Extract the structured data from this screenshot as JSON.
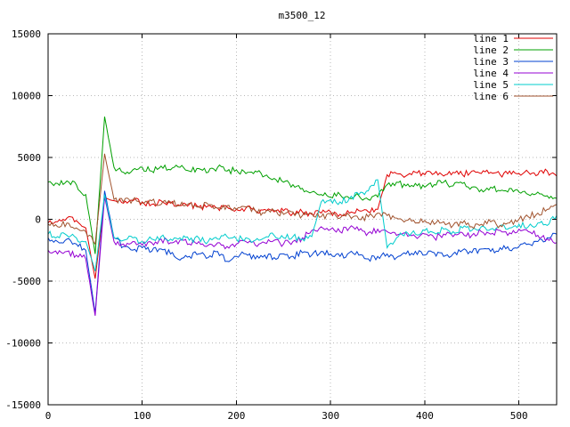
{
  "chart_data": {
    "type": "line",
    "title": "m3500_12",
    "xlabel": "",
    "ylabel": "",
    "xlim": [
      0,
      540
    ],
    "ylim": [
      -15000,
      15000
    ],
    "xticks": [
      0,
      100,
      200,
      300,
      400,
      500
    ],
    "yticks": [
      -15000,
      -10000,
      -5000,
      0,
      5000,
      10000,
      15000
    ],
    "grid": true,
    "grid_color": "#b9b9b9",
    "legend_position": "top-right",
    "x": [
      0,
      10,
      20,
      30,
      40,
      50,
      60,
      70,
      80,
      90,
      100,
      110,
      120,
      130,
      140,
      150,
      160,
      170,
      180,
      190,
      200,
      210,
      220,
      230,
      240,
      250,
      260,
      270,
      280,
      290,
      300,
      310,
      320,
      330,
      340,
      350,
      360,
      370,
      380,
      390,
      400,
      410,
      420,
      430,
      440,
      450,
      460,
      470,
      480,
      490,
      500,
      510,
      520,
      530,
      540
    ],
    "series": [
      {
        "name": "line 1",
        "color": "#e00000",
        "values": [
          -300,
          -200,
          100,
          -100,
          -700,
          -4800,
          1800,
          1500,
          1300,
          1500,
          1400,
          1200,
          1500,
          1300,
          1100,
          1200,
          1000,
          1100,
          900,
          1000,
          800,
          900,
          700,
          800,
          600,
          700,
          500,
          600,
          400,
          500,
          600,
          400,
          500,
          700,
          600,
          800,
          3600,
          3700,
          3500,
          3800,
          3600,
          3700,
          3500,
          3800,
          3600,
          3900,
          3700,
          3800,
          3600,
          3900,
          3700,
          3800,
          3600,
          3900,
          3500
        ]
      },
      {
        "name": "line 2",
        "color": "#00a000",
        "values": [
          3000,
          2900,
          3100,
          2800,
          2000,
          -2800,
          8300,
          4200,
          3800,
          4000,
          4200,
          3900,
          4300,
          4000,
          4200,
          3900,
          4100,
          3800,
          4200,
          3900,
          4000,
          3700,
          3900,
          3500,
          3300,
          3000,
          2800,
          2500,
          2200,
          2000,
          1800,
          2000,
          1700,
          1900,
          1600,
          1800,
          2800,
          3000,
          2700,
          2900,
          2600,
          2800,
          3000,
          2700,
          2900,
          2600,
          2400,
          2600,
          2300,
          2500,
          2200,
          2000,
          2200,
          1900,
          1700
        ]
      },
      {
        "name": "line 3",
        "color": "#0040d0",
        "values": [
          -1500,
          -1800,
          -1600,
          -2000,
          -2500,
          -7600,
          2300,
          -1500,
          -2200,
          -2500,
          -2300,
          -2600,
          -2400,
          -2800,
          -3300,
          -3000,
          -2800,
          -3100,
          -2600,
          -3400,
          -3000,
          -2800,
          -3200,
          -2900,
          -3100,
          -2800,
          -3000,
          -2700,
          -2900,
          -2600,
          -2800,
          -3000,
          -2700,
          -2900,
          -3200,
          -3000,
          -2800,
          -3100,
          -2800,
          -2600,
          -2900,
          -2700,
          -3000,
          -2800,
          -2500,
          -2700,
          -2400,
          -2600,
          -2300,
          -2500,
          -2200,
          -2000,
          -1800,
          -1500,
          -1200
        ]
      },
      {
        "name": "line 4",
        "color": "#9400d3",
        "values": [
          -2500,
          -2800,
          -2600,
          -2900,
          -3200,
          -7800,
          1800,
          -1800,
          -2000,
          -1800,
          -2100,
          -1900,
          -1600,
          -1900,
          -1700,
          -2000,
          -1800,
          -2100,
          -1900,
          -2200,
          -2000,
          -1800,
          -2100,
          -1900,
          -1700,
          -2000,
          -1800,
          -1500,
          -900,
          -600,
          -800,
          -1000,
          -700,
          -900,
          -1100,
          -800,
          -1000,
          -1300,
          -1100,
          -1400,
          -1200,
          -1500,
          -1200,
          -1400,
          -1100,
          -1300,
          -1000,
          -1200,
          -900,
          -1100,
          -800,
          -1000,
          -1300,
          -1600,
          -1900
        ]
      },
      {
        "name": "line 5",
        "color": "#00cccc",
        "values": [
          -1200,
          -1400,
          -1300,
          -1500,
          -1800,
          -4200,
          2000,
          -1500,
          -1700,
          -1500,
          -1800,
          -1600,
          -1400,
          -1600,
          -1500,
          -1700,
          -1500,
          -1800,
          -1600,
          -1400,
          -1600,
          -1500,
          -1700,
          -1500,
          -1300,
          -1500,
          -1400,
          -1600,
          -1400,
          1400,
          1600,
          1400,
          1700,
          2000,
          2300,
          3200,
          -2300,
          -1500,
          -1000,
          -1200,
          -900,
          -1100,
          -800,
          -1000,
          -700,
          -900,
          -600,
          -800,
          -500,
          -700,
          -400,
          -600,
          -300,
          -500,
          300
        ]
      },
      {
        "name": "line 6",
        "color": "#a0522d",
        "values": [
          -400,
          -600,
          -300,
          -700,
          -1000,
          -2000,
          5300,
          1600,
          1400,
          1600,
          1300,
          1500,
          1200,
          1400,
          1100,
          1300,
          1000,
          1200,
          900,
          1100,
          800,
          1000,
          700,
          500,
          700,
          400,
          600,
          300,
          500,
          200,
          400,
          100,
          300,
          0,
          200,
          500,
          300,
          100,
          -100,
          -300,
          -100,
          -400,
          -200,
          -500,
          -300,
          -600,
          -400,
          -200,
          -500,
          -300,
          0,
          200,
          500,
          800,
          1200
        ]
      }
    ]
  }
}
